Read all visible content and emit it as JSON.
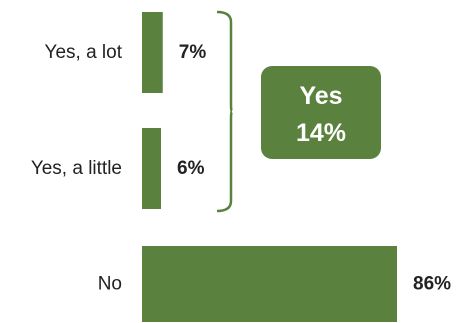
{
  "chart_data": {
    "type": "bar",
    "orientation": "horizontal",
    "categories": [
      "Yes, a lot",
      "Yes, a little",
      "No"
    ],
    "values": [
      7,
      6,
      86
    ],
    "value_labels": [
      "7%",
      "6%",
      "86%"
    ],
    "unit": "%",
    "xlim": [
      0,
      100
    ],
    "grid": false,
    "bar_color": "#5a813d",
    "group_summary": {
      "groups": [
        "Yes, a lot",
        "Yes, a little"
      ],
      "label": "Yes",
      "value": 14,
      "value_label": "14%",
      "box_color": "#5a813d",
      "text_color": "#ffffff"
    }
  }
}
